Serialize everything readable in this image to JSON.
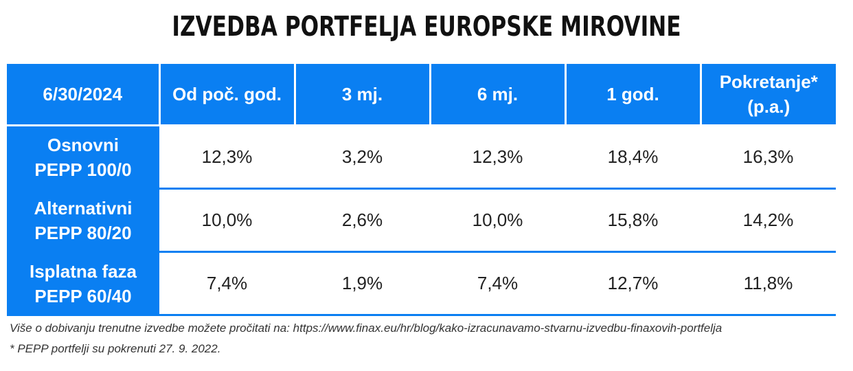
{
  "title": "IZVEDBA PORTFELJA EUROPSKE MIROVINE",
  "table": {
    "headers": [
      "6/30/2024",
      "Od poč. god.",
      "3 mj.",
      "6 mj.",
      "1 god.",
      "Pokretanje*",
      "(p.a.)"
    ],
    "rows": [
      {
        "name_line1": "Osnovni",
        "name_line2": "PEPP 100/0",
        "values": [
          "12,3%",
          "3,2%",
          "12,3%",
          "18,4%",
          "16,3%"
        ]
      },
      {
        "name_line1": "Alternativni",
        "name_line2": "PEPP 80/20",
        "values": [
          "10,0%",
          "2,6%",
          "10,0%",
          "15,8%",
          "14,2%"
        ]
      },
      {
        "name_line1": "Isplatna faza",
        "name_line2": "PEPP 60/40",
        "values": [
          "7,4%",
          "1,9%",
          "7,4%",
          "12,7%",
          "11,8%"
        ]
      }
    ]
  },
  "footnotes": {
    "more_info": "Više o dobivanju trenutne izvedbe možete pročitati na: https://www.finax.eu/hr/blog/kako-izracunavamo-stvarnu-izvedbu-finaxovih-portfelja",
    "launch_note": "* PEPP portfelji su pokrenuti 27. 9. 2022."
  },
  "colors": {
    "accent": "#0a7ff2",
    "text": "#222222"
  }
}
